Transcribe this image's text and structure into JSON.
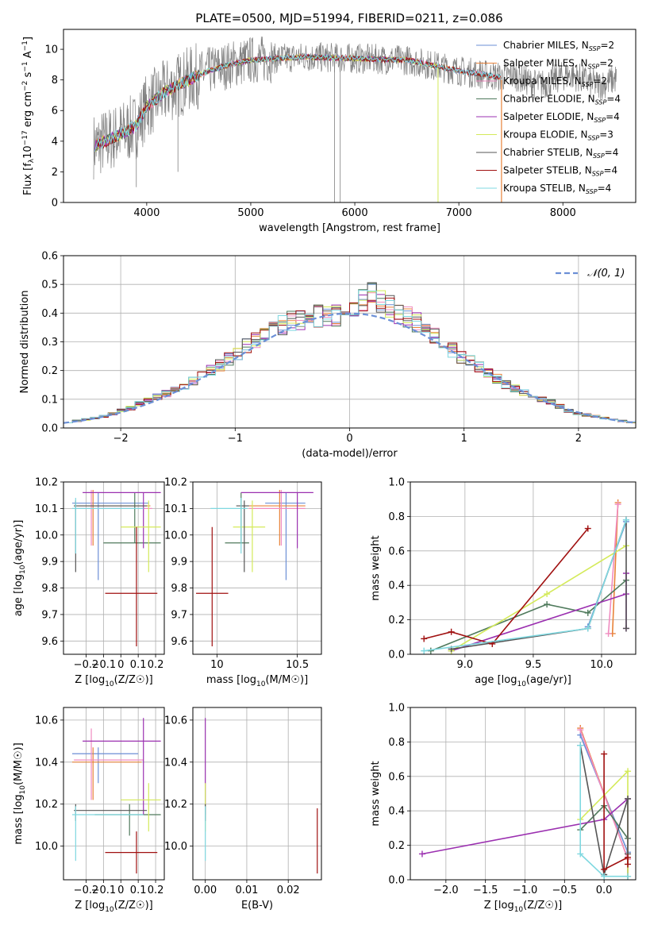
{
  "page_title": "PLATE=0500, MJD=51994, FIBERID=0211, z=0.086",
  "colors": {
    "chab_miles": "#6b8fd6",
    "salp_miles": "#e8833a",
    "krou_miles": "#f08cc0",
    "chab_elodie": "#4f7a5c",
    "salp_elodie": "#9b30b0",
    "krou_elodie": "#d4ea5a",
    "chab_stelib": "#555555",
    "salp_stelib": "#a01010",
    "krou_stelib": "#7fd8e0",
    "data": "#808080"
  },
  "chart_data": [
    {
      "id": "spectrum",
      "type": "line",
      "title": "PLATE=0500, MJD=51994, FIBERID=0211, z=0.086",
      "xlabel": "wavelength [Angstrom, rest frame]",
      "ylabel": "Flux [f",
      "ylabel_parts": [
        "Flux [f",
        "λ",
        "10",
        "−17",
        " erg cm",
        "−2",
        " s",
        "−1",
        " A",
        "−1",
        "]"
      ],
      "xlim": [
        3200,
        8700
      ],
      "ylim": [
        0,
        11.3
      ],
      "xticks": [
        4000,
        5000,
        6000,
        7000,
        8000
      ],
      "yticks": [
        0,
        2,
        4,
        6,
        8,
        10
      ],
      "legend": [
        {
          "label": "Chabrier MILES, N",
          "sub": "SSP",
          "val": "=2",
          "color_key": "chab_miles"
        },
        {
          "label": "Salpeter MILES, N",
          "sub": "SSP",
          "val": "=2",
          "color_key": "salp_miles"
        },
        {
          "label": "Kroupa MILES, N",
          "sub": "SSP",
          "val": "=2",
          "color_key": "krou_miles"
        },
        {
          "label": "Chabrier ELODIE, N",
          "sub": "SSP",
          "val": "=4",
          "color_key": "chab_elodie"
        },
        {
          "label": "Salpeter ELODIE, N",
          "sub": "SSP",
          "val": "=4",
          "color_key": "salp_elodie"
        },
        {
          "label": "Kroupa ELODIE, N",
          "sub": "SSP",
          "val": "=3",
          "color_key": "krou_elodie"
        },
        {
          "label": "Chabrier STELIB, N",
          "sub": "SSP",
          "val": "=4",
          "color_key": "chab_stelib"
        },
        {
          "label": "Salpeter STELIB, N",
          "sub": "SSP",
          "val": "=4",
          "color_key": "salp_stelib"
        },
        {
          "label": "Kroupa STELIB, N",
          "sub": "SSP",
          "val": "=4",
          "color_key": "krou_stelib"
        }
      ],
      "continuum": [
        [
          3500,
          3.7
        ],
        [
          3700,
          4.3
        ],
        [
          3900,
          5.0
        ],
        [
          4000,
          6.3
        ],
        [
          4200,
          7.3
        ],
        [
          4400,
          8.0
        ],
        [
          4600,
          8.6
        ],
        [
          4800,
          9.0
        ],
        [
          5000,
          9.3
        ],
        [
          5500,
          9.5
        ],
        [
          6000,
          9.4
        ],
        [
          6500,
          9.3
        ],
        [
          7000,
          8.6
        ],
        [
          7400,
          8.2
        ]
      ],
      "data_extent": [
        3490,
        8520
      ]
    },
    {
      "id": "residuals",
      "type": "bar",
      "xlabel": "(data-model)/error",
      "ylabel": "Normed distribution",
      "xlim": [
        -2.5,
        2.5
      ],
      "ylim": [
        0,
        0.6
      ],
      "xticks": [
        -2,
        -1,
        0,
        1,
        2
      ],
      "yticks": [
        0.0,
        0.1,
        0.2,
        0.3,
        0.4,
        0.5,
        0.6
      ],
      "legend": "𝒩(0, 1)",
      "bin_width": 0.1,
      "envelope": [
        0.02,
        0.025,
        0.03,
        0.035,
        0.04,
        0.05,
        0.06,
        0.07,
        0.085,
        0.095,
        0.11,
        0.12,
        0.135,
        0.15,
        0.165,
        0.18,
        0.2,
        0.22,
        0.24,
        0.26,
        0.285,
        0.31,
        0.33,
        0.345,
        0.36,
        0.37,
        0.38,
        0.385,
        0.39,
        0.395,
        0.39,
        0.395,
        0.42,
        0.45,
        0.47,
        0.44,
        0.42,
        0.4,
        0.39,
        0.37,
        0.35,
        0.32,
        0.29,
        0.27,
        0.25,
        0.23,
        0.21,
        0.19,
        0.17,
        0.15,
        0.14,
        0.125,
        0.11,
        0.1,
        0.09,
        0.075,
        0.06,
        0.05,
        0.045,
        0.04,
        0.035,
        0.03,
        0.025,
        0.02
      ]
    },
    {
      "id": "age_vs_Z",
      "type": "scatter",
      "xlabel": "Z [log",
      "ylabel": "age  [log",
      "xlim": [
        -0.33,
        0.25
      ],
      "ylim": [
        9.55,
        10.2
      ],
      "xticks": [
        -0.2,
        -0.1,
        0.0,
        0.1,
        0.2
      ],
      "yticks": [
        9.6,
        9.7,
        9.8,
        9.9,
        10.0,
        10.1,
        10.2
      ],
      "points": [
        {
          "c": "chab_miles",
          "x": -0.13,
          "y": 10.12,
          "xe": [
            -0.28,
            0.16
          ],
          "ye": [
            9.83,
            10.16
          ]
        },
        {
          "c": "salp_miles",
          "x": -0.16,
          "y": 10.11,
          "xe": [
            -0.27,
            0.17
          ],
          "ye": [
            9.96,
            10.17
          ]
        },
        {
          "c": "krou_miles",
          "x": -0.17,
          "y": 10.1,
          "xe": [
            -0.26,
            0.18
          ],
          "ye": [
            9.96,
            10.17
          ]
        },
        {
          "c": "chab_elodie",
          "x": 0.08,
          "y": 9.97,
          "xe": [
            -0.1,
            0.23
          ],
          "ye": [
            9.97,
            10.16
          ]
        },
        {
          "c": "salp_elodie",
          "x": 0.13,
          "y": 10.16,
          "xe": [
            -0.22,
            0.23
          ],
          "ye": [
            9.95,
            10.16
          ]
        },
        {
          "c": "krou_elodie",
          "x": 0.16,
          "y": 10.03,
          "xe": [
            0.0,
            0.23
          ],
          "ye": [
            9.86,
            10.13
          ]
        },
        {
          "c": "chab_stelib",
          "x": -0.26,
          "y": 10.11,
          "xe": [
            -0.27,
            0.15
          ],
          "ye": [
            9.86,
            10.13
          ]
        },
        {
          "c": "salp_stelib",
          "x": 0.09,
          "y": 9.78,
          "xe": [
            -0.09,
            0.21
          ],
          "ye": [
            9.58,
            10.03
          ]
        },
        {
          "c": "krou_stelib",
          "x": -0.26,
          "y": 10.1,
          "xe": [
            -0.28,
            0.13
          ],
          "ye": [
            9.93,
            10.14
          ]
        }
      ]
    },
    {
      "id": "age_vs_mass",
      "type": "scatter",
      "xlabel": "mass [log",
      "xlim": [
        9.85,
        10.65
      ],
      "ylim": [
        9.55,
        10.2
      ],
      "xticks": [
        10.0,
        10.5
      ],
      "yticks": [
        9.6,
        9.7,
        9.8,
        9.9,
        10.0,
        10.1,
        10.2
      ],
      "points": [
        {
          "c": "chab_miles",
          "x": 10.43,
          "y": 10.12,
          "xe": [
            10.3,
            10.55
          ],
          "ye": [
            9.83,
            10.16
          ]
        },
        {
          "c": "salp_miles",
          "x": 10.39,
          "y": 10.11,
          "xe": [
            10.2,
            10.55
          ],
          "ye": [
            9.96,
            10.17
          ]
        },
        {
          "c": "krou_miles",
          "x": 10.4,
          "y": 10.1,
          "xe": [
            10.2,
            10.55
          ],
          "ye": [
            9.96,
            10.17
          ]
        },
        {
          "c": "chab_elodie",
          "x": 10.15,
          "y": 9.97,
          "xe": [
            10.05,
            10.2
          ],
          "ye": [
            9.97,
            10.16
          ]
        },
        {
          "c": "salp_elodie",
          "x": 10.5,
          "y": 10.16,
          "xe": [
            10.15,
            10.6
          ],
          "ye": [
            9.95,
            10.16
          ]
        },
        {
          "c": "krou_elodie",
          "x": 10.22,
          "y": 10.03,
          "xe": [
            10.1,
            10.3
          ],
          "ye": [
            9.86,
            10.13
          ]
        },
        {
          "c": "chab_stelib",
          "x": 10.17,
          "y": 10.11,
          "xe": [
            10.12,
            10.2
          ],
          "ye": [
            9.86,
            10.13
          ]
        },
        {
          "c": "salp_stelib",
          "x": 9.97,
          "y": 9.78,
          "xe": [
            9.87,
            10.07
          ],
          "ye": [
            9.58,
            10.03
          ]
        },
        {
          "c": "krou_stelib",
          "x": 10.15,
          "y": 10.1,
          "xe": [
            9.96,
            10.19
          ],
          "ye": [
            9.93,
            10.14
          ]
        }
      ]
    },
    {
      "id": "mw_vs_age",
      "type": "line",
      "xlabel": "age  [log",
      "ylabel": "mass weight",
      "xlim": [
        8.6,
        10.25
      ],
      "ylim": [
        0,
        1.0
      ],
      "xticks": [
        9.0,
        9.5,
        10.0
      ],
      "yticks": [
        0.0,
        0.2,
        0.4,
        0.6,
        0.8,
        1.0
      ],
      "series": [
        {
          "c": "chab_miles",
          "x": [
            9.9,
            10.18
          ],
          "y": [
            0.16,
            0.77
          ]
        },
        {
          "c": "salp_miles",
          "x": [
            10.08,
            10.12
          ],
          "y": [
            0.12,
            0.88
          ]
        },
        {
          "c": "krou_miles",
          "x": [
            10.05,
            10.12
          ],
          "y": [
            0.12,
            0.87
          ]
        },
        {
          "c": "chab_elodie",
          "x": [
            8.75,
            9.6,
            9.9,
            10.18
          ],
          "y": [
            0.02,
            0.29,
            0.24,
            0.43
          ]
        },
        {
          "c": "salp_elodie",
          "x": [
            8.9,
            10.18,
            10.18,
            10.18
          ],
          "y": [
            0.02,
            0.35,
            0.47,
            0.15
          ]
        },
        {
          "c": "krou_elodie",
          "x": [
            8.9,
            9.6,
            10.18
          ],
          "y": [
            0.02,
            0.35,
            0.63
          ]
        },
        {
          "c": "chab_stelib",
          "x": [
            8.9,
            9.9,
            10.18,
            10.18
          ],
          "y": [
            0.03,
            0.15,
            0.78,
            0.15
          ]
        },
        {
          "c": "salp_stelib",
          "x": [
            8.7,
            8.9,
            9.2,
            9.9
          ],
          "y": [
            0.09,
            0.13,
            0.06,
            0.73
          ]
        },
        {
          "c": "krou_stelib",
          "x": [
            8.7,
            9.9,
            10.18
          ],
          "y": [
            0.02,
            0.15,
            0.78
          ]
        }
      ]
    },
    {
      "id": "mass_vs_Z",
      "type": "scatter",
      "xlabel": "Z [log",
      "ylabel": "mass [log",
      "xlim": [
        -0.33,
        0.25
      ],
      "ylim": [
        9.84,
        10.66
      ],
      "xticks": [
        -0.2,
        -0.1,
        0.0,
        0.1,
        0.2
      ],
      "yticks": [
        10.0,
        10.2,
        10.4,
        10.6
      ],
      "points": [
        {
          "c": "chab_miles",
          "x": -0.13,
          "y": 10.44,
          "xe": [
            -0.28,
            0.1
          ],
          "ye": [
            10.3,
            10.47
          ]
        },
        {
          "c": "salp_miles",
          "x": -0.16,
          "y": 10.4,
          "xe": [
            -0.28,
            0.12
          ],
          "ye": [
            10.22,
            10.47
          ]
        },
        {
          "c": "krou_miles",
          "x": -0.17,
          "y": 10.41,
          "xe": [
            -0.27,
            0.13
          ],
          "ye": [
            10.22,
            10.56
          ]
        },
        {
          "c": "chab_elodie",
          "x": 0.05,
          "y": 10.15,
          "xe": [
            -0.15,
            0.23
          ],
          "ye": [
            10.05,
            10.2
          ]
        },
        {
          "c": "salp_elodie",
          "x": 0.13,
          "y": 10.5,
          "xe": [
            -0.22,
            0.23
          ],
          "ye": [
            10.15,
            10.61
          ]
        },
        {
          "c": "krou_elodie",
          "x": 0.16,
          "y": 10.22,
          "xe": [
            0.0,
            0.23
          ],
          "ye": [
            10.07,
            10.3
          ]
        },
        {
          "c": "chab_stelib",
          "x": -0.26,
          "y": 10.17,
          "xe": [
            -0.27,
            0.15
          ],
          "ye": [
            10.12,
            10.2
          ]
        },
        {
          "c": "salp_stelib",
          "x": 0.09,
          "y": 9.97,
          "xe": [
            -0.09,
            0.21
          ],
          "ye": [
            9.87,
            10.07
          ]
        },
        {
          "c": "krou_stelib",
          "x": -0.26,
          "y": 10.15,
          "xe": [
            -0.28,
            0.13
          ],
          "ye": [
            9.93,
            10.19
          ]
        }
      ]
    },
    {
      "id": "mass_vs_ebv",
      "type": "scatter",
      "xlabel": "E(B-V)",
      "xlim": [
        -0.003,
        0.028
      ],
      "ylim": [
        9.84,
        10.66
      ],
      "xticks": [
        0.0,
        0.01,
        0.02
      ],
      "xtick_labels": [
        "0.00",
        "0.01",
        "0.02"
      ],
      "yticks": [
        10.0,
        10.2,
        10.4,
        10.6
      ],
      "points": [
        {
          "c": "salp_elodie",
          "x": 0.0,
          "y": 10.5,
          "xe": [
            0.0,
            0.0
          ],
          "ye": [
            10.15,
            10.61
          ]
        },
        {
          "c": "krou_elodie",
          "x": 0.0,
          "y": 10.22,
          "xe": [
            0.0,
            0.0
          ],
          "ye": [
            10.07,
            10.3
          ]
        },
        {
          "c": "chab_stelib",
          "x": 0.0,
          "y": 10.17,
          "xe": [
            0.0,
            0.0
          ],
          "ye": [
            10.12,
            10.2
          ]
        },
        {
          "c": "krou_stelib",
          "x": 0.0,
          "y": 10.15,
          "xe": [
            0.0,
            0.0
          ],
          "ye": [
            9.93,
            10.19
          ]
        },
        {
          "c": "salp_stelib",
          "x": 0.027,
          "y": 9.97,
          "xe": [
            0.027,
            0.027
          ],
          "ye": [
            9.87,
            10.18
          ]
        }
      ]
    },
    {
      "id": "mw_vs_Z",
      "type": "line",
      "xlabel": "Z [log",
      "ylabel": "mass weight",
      "xlim": [
        -2.45,
        0.4
      ],
      "ylim": [
        0,
        1.0
      ],
      "xticks": [
        -2.0,
        -1.5,
        -1.0,
        -0.5,
        0.0
      ],
      "xtick_labels": [
        "−2.0",
        "−1.5",
        "−1.0",
        "−0.5",
        "0.0"
      ],
      "yticks": [
        0.0,
        0.2,
        0.4,
        0.6,
        0.8,
        1.0
      ],
      "series": [
        {
          "c": "chab_miles",
          "x": [
            -0.3,
            0.3
          ],
          "y": [
            0.84,
            0.16
          ]
        },
        {
          "c": "salp_miles",
          "x": [
            -0.3,
            0.3
          ],
          "y": [
            0.88,
            0.12
          ]
        },
        {
          "c": "krou_miles",
          "x": [
            -0.3,
            0.3
          ],
          "y": [
            0.87,
            0.12
          ]
        },
        {
          "c": "chab_elodie",
          "x": [
            -0.3,
            0.0,
            0.3,
            0.3
          ],
          "y": [
            0.29,
            0.43,
            0.24,
            0.02
          ]
        },
        {
          "c": "salp_elodie",
          "x": [
            -2.3,
            0.0,
            0.3,
            0.3
          ],
          "y": [
            0.15,
            0.35,
            0.47,
            0.02
          ]
        },
        {
          "c": "krou_elodie",
          "x": [
            -0.3,
            0.3,
            0.3
          ],
          "y": [
            0.35,
            0.63,
            0.02
          ]
        },
        {
          "c": "chab_stelib",
          "x": [
            -0.3,
            0.0,
            0.3,
            0.3
          ],
          "y": [
            0.78,
            0.03,
            0.47,
            0.15
          ]
        },
        {
          "c": "salp_stelib",
          "x": [
            0.0,
            0.0,
            0.3,
            0.3
          ],
          "y": [
            0.73,
            0.06,
            0.13,
            0.09
          ]
        },
        {
          "c": "krou_stelib",
          "x": [
            -0.3,
            -0.3,
            0.0,
            0.3
          ],
          "y": [
            0.78,
            0.15,
            0.02,
            0.02
          ]
        }
      ]
    }
  ]
}
